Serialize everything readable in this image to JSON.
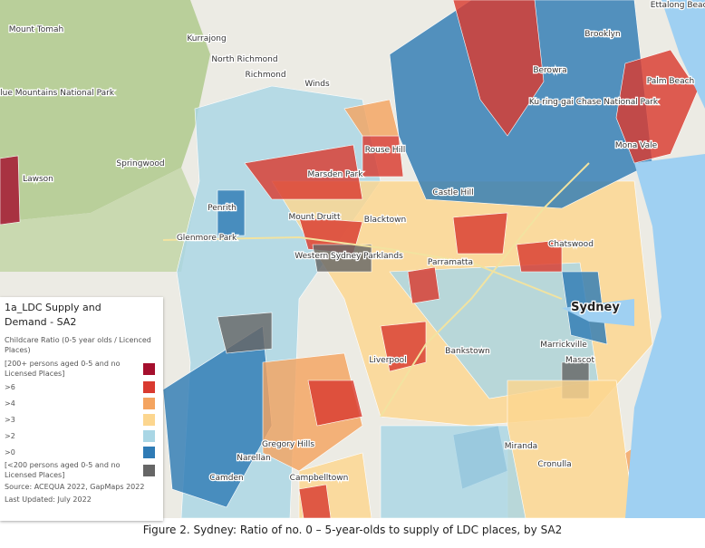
{
  "map": {
    "places": [
      {
        "label": "Mount Tomah"
      },
      {
        "label": "Kurrajong"
      },
      {
        "label": "North Richmond"
      },
      {
        "label": "Richmond"
      },
      {
        "label": "Winds"
      },
      {
        "label": "Blue Mountains National Park"
      },
      {
        "label": "Springwood"
      },
      {
        "label": "Lawson"
      },
      {
        "label": "Penrith"
      },
      {
        "label": "Glenmore Park"
      },
      {
        "label": "Marsden Park"
      },
      {
        "label": "Rouse Hill"
      },
      {
        "label": "Castle Hill"
      },
      {
        "label": "Mount Druitt"
      },
      {
        "label": "Blacktown"
      },
      {
        "label": "Western Sydney Parklands"
      },
      {
        "label": "Parramatta"
      },
      {
        "label": "Liverpool"
      },
      {
        "label": "Bankstown"
      },
      {
        "label": "Gregory Hills"
      },
      {
        "label": "Narellan"
      },
      {
        "label": "Camden"
      },
      {
        "label": "Campbelltown"
      },
      {
        "label": "Miranda"
      },
      {
        "label": "Cronulla"
      },
      {
        "label": "Sydney"
      },
      {
        "label": "Chatswood"
      },
      {
        "label": "Marrickville"
      },
      {
        "label": "Mascot"
      },
      {
        "label": "Berowra"
      },
      {
        "label": "Ku-ring-gai Chase National Park"
      },
      {
        "label": "Mona Vale"
      },
      {
        "label": "Palm Beach"
      },
      {
        "label": "Brooklyn"
      },
      {
        "label": "Ettalong Beach"
      }
    ]
  },
  "legend": {
    "title": "1a_LDC Supply and Demand - SA2",
    "subtitle": "Childcare Ratio (0-5 year olds / Licenced Places)",
    "items": [
      {
        "label": "[200+ persons aged 0-5 and no Licensed Places]",
        "color": "#a50f2d"
      },
      {
        "label": ">6",
        "color": "#d93a30"
      },
      {
        "label": ">4",
        "color": "#f4a460"
      },
      {
        "label": ">3",
        "color": "#fcd68f"
      },
      {
        "label": ">2",
        "color": "#a9d6e5"
      },
      {
        "label": ">0",
        "color": "#2f7bb5"
      },
      {
        "label": "[<200 persons aged 0-5 and no Licensed Places]",
        "color": "#666666"
      }
    ],
    "source": "Source: ACEQUA 2022, GapMaps 2022",
    "updated": "Last Updated: July 2022"
  },
  "caption": "Figure 2. Sydney: Ratio of no. 0 – 5-year-olds to supply of LDC places, by SA2"
}
